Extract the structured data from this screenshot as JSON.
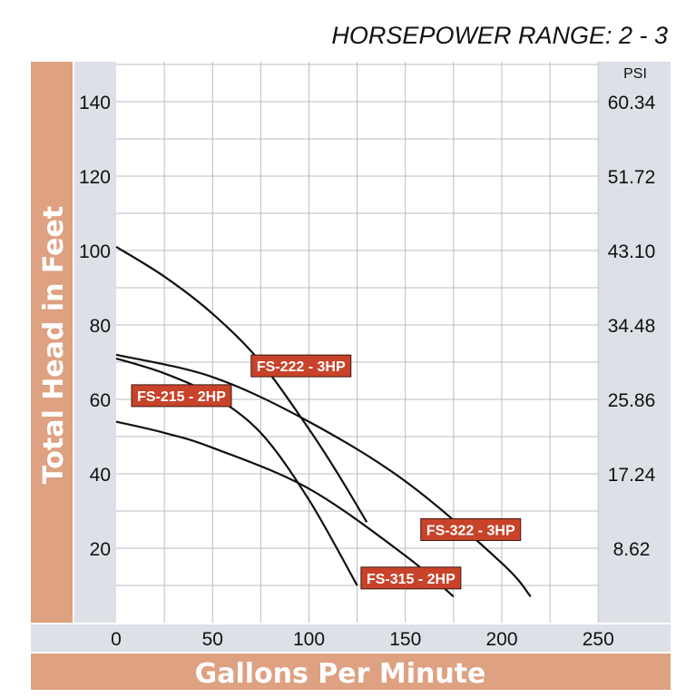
{
  "chart_data": {
    "type": "line",
    "title": "HORSEPOWER RANGE: 2 - 3",
    "xlabel": "Gallons Per Minute",
    "ylabel": "Total Head in Feet",
    "y2label": "PSI",
    "xlim": [
      0,
      250
    ],
    "ylim": [
      0,
      150
    ],
    "xticks": [
      "0",
      "50",
      "100",
      "150",
      "200",
      "250"
    ],
    "yticks": [
      "20",
      "40",
      "60",
      "80",
      "100",
      "120",
      "140"
    ],
    "y2ticks": [
      "8.62",
      "17.24",
      "25.86",
      "34.48",
      "43.10",
      "51.72",
      "60.34"
    ],
    "grid": true,
    "series": [
      {
        "name": "FS-222 - 3HP",
        "label_at": [
          70,
          69
        ],
        "points": [
          [
            0,
            101
          ],
          [
            25,
            93
          ],
          [
            50,
            83
          ],
          [
            75,
            70
          ],
          [
            100,
            52
          ],
          [
            115,
            40
          ],
          [
            130,
            27
          ]
        ]
      },
      {
        "name": "FS-215 - 2HP",
        "label_at": [
          8,
          61
        ],
        "points": [
          [
            0,
            71
          ],
          [
            25,
            67
          ],
          [
            50,
            61
          ],
          [
            75,
            51
          ],
          [
            100,
            33
          ],
          [
            125,
            10
          ]
        ]
      },
      {
        "name": "FS-322 - 3HP",
        "label_at": [
          158,
          25
        ],
        "points": [
          [
            0,
            72
          ],
          [
            50,
            66
          ],
          [
            100,
            54
          ],
          [
            150,
            38
          ],
          [
            200,
            16
          ],
          [
            215,
            7
          ]
        ]
      },
      {
        "name": "FS-315 - 2HP",
        "label_at": [
          127,
          12
        ],
        "points": [
          [
            0,
            54
          ],
          [
            25,
            51
          ],
          [
            50,
            47
          ],
          [
            100,
            36
          ],
          [
            150,
            18
          ],
          [
            175,
            7
          ]
        ]
      }
    ]
  }
}
